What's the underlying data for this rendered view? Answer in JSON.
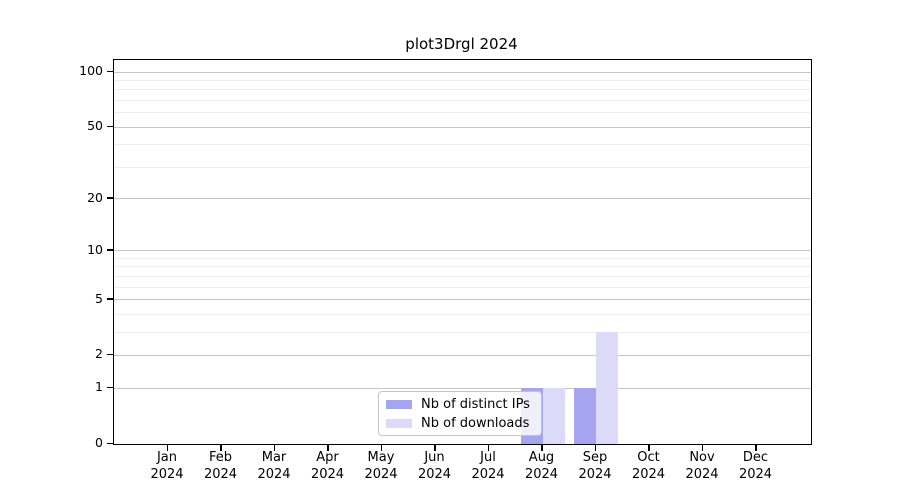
{
  "chart_data": {
    "type": "bar",
    "title": "plot3Drgl 2024",
    "categories": [
      "Jan",
      "Feb",
      "Mar",
      "Apr",
      "May",
      "Jun",
      "Jul",
      "Aug",
      "Sep",
      "Oct",
      "Nov",
      "Dec"
    ],
    "year": "2024",
    "series": [
      {
        "name": "Nb of distinct IPs",
        "color": "#a5a5ef",
        "values": [
          0,
          0,
          0,
          0,
          0,
          0,
          0,
          1,
          1,
          0,
          0,
          0
        ]
      },
      {
        "name": "Nb of downloads",
        "color": "#dbdbf8",
        "values": [
          0,
          0,
          0,
          0,
          0,
          0,
          0,
          1,
          3,
          0,
          0,
          0
        ]
      }
    ],
    "y_axis": {
      "scale": "log1p",
      "ticks": [
        0,
        1,
        2,
        5,
        10,
        20,
        50,
        100
      ],
      "minor_gridlines": [
        3,
        4,
        6,
        7,
        8,
        9,
        30,
        40,
        60,
        70,
        80,
        90
      ],
      "max": 100
    },
    "x_axis": {
      "label_line2": "2024"
    },
    "grid": true,
    "legend_position": "bottom-center",
    "colors": {
      "major_grid": "#c6c6c6",
      "minor_grid": "#ececec",
      "axis": "#000000",
      "background": "#ffffff"
    }
  }
}
